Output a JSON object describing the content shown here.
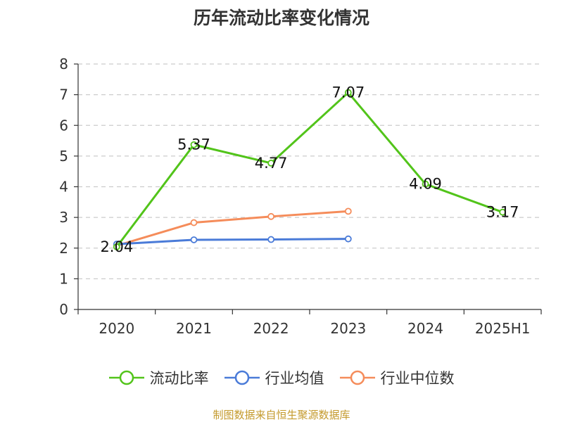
{
  "chart_data": {
    "type": "line",
    "title": "历年流动比率变化情况",
    "categories": [
      "2020",
      "2021",
      "2022",
      "2023",
      "2024",
      "2025H1"
    ],
    "ylim": [
      0,
      8
    ],
    "yticks": [
      "0",
      "1",
      "2",
      "3",
      "4",
      "5",
      "6",
      "7",
      "8"
    ],
    "grid": true,
    "legend_position": "bottom",
    "series": [
      {
        "name": "流动比率",
        "color": "#52c41a",
        "values": [
          2.04,
          5.37,
          4.77,
          7.07,
          4.09,
          3.17
        ],
        "labels": [
          "2.04",
          "5.37",
          "4.77",
          "7.07",
          "4.09",
          "3.17"
        ]
      },
      {
        "name": "行业均值",
        "color": "#4a7bd8",
        "values": [
          2.13,
          2.27,
          2.28,
          2.3,
          null,
          null
        ]
      },
      {
        "name": "行业中位数",
        "color": "#f58c5a",
        "values": [
          2.08,
          2.83,
          3.03,
          3.2,
          null,
          null
        ]
      }
    ],
    "source": "制图数据来自恒生聚源数据库",
    "source_color": "#c49a2c"
  }
}
